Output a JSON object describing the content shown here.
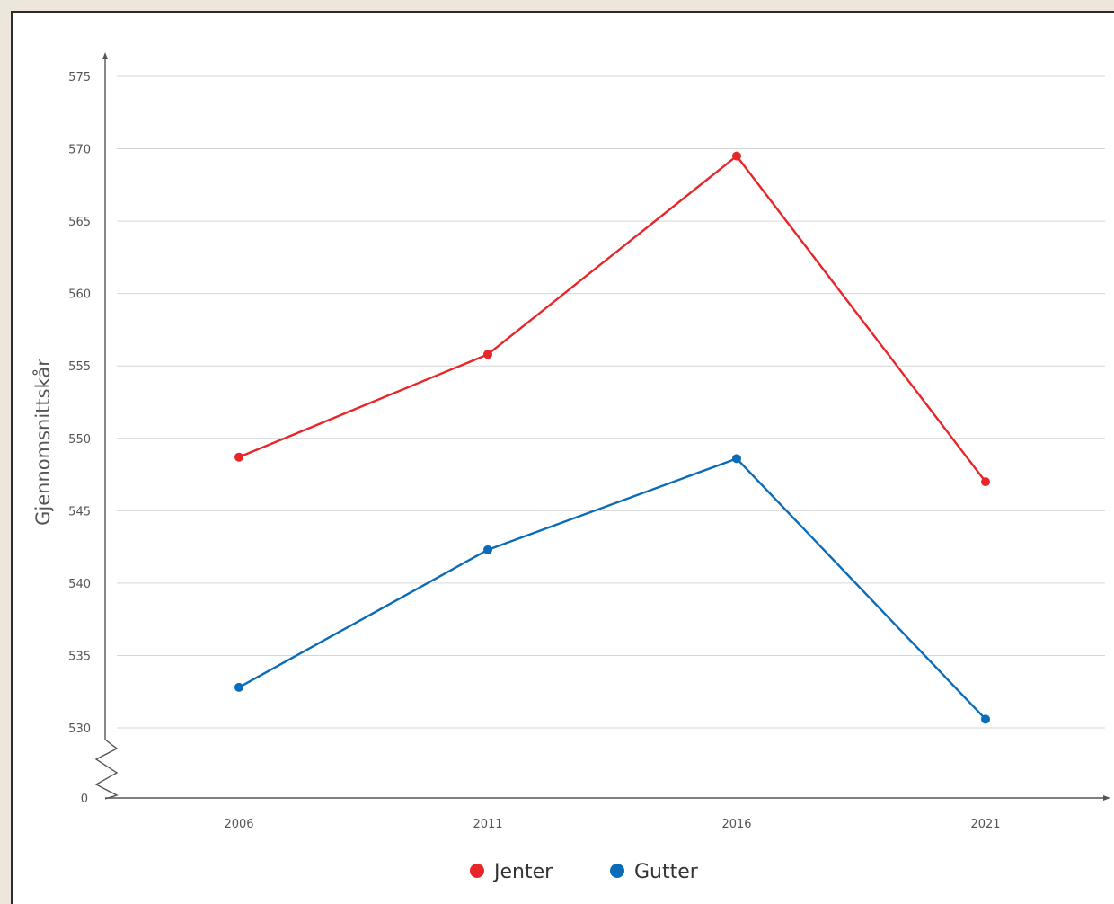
{
  "chart_data": {
    "type": "line",
    "x": [
      "2006",
      "2011",
      "2016",
      "2021"
    ],
    "ylabel": "Gjennomsnittskår",
    "xlabel": "",
    "ylim": [
      530,
      575
    ],
    "y_ticks": [
      "575",
      "570",
      "565",
      "560",
      "555",
      "550",
      "545",
      "540",
      "535",
      "530"
    ],
    "y_break_label": "0",
    "grid": true,
    "legend_position": "bottom-center",
    "series": [
      {
        "name": "Jenter",
        "color": "#e8262a",
        "values": [
          548.7,
          555.8,
          569.5,
          547.0
        ]
      },
      {
        "name": "Gutter",
        "color": "#0a6cb8",
        "values": [
          532.8,
          542.3,
          548.6,
          530.6
        ]
      }
    ]
  }
}
